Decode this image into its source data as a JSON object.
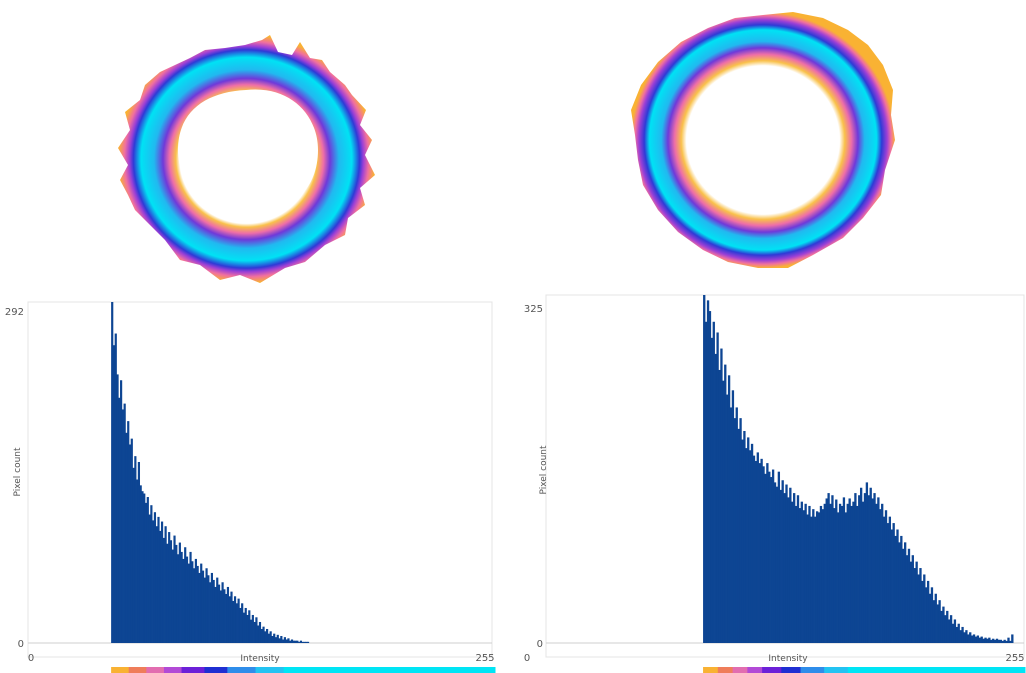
{
  "panels": [
    {
      "image": {
        "name": "left-ring-intensity-map"
      },
      "legend_colors": [
        "#f9b233",
        "#ef7d5a",
        "#e26db0",
        "#b24ad6",
        "#6c20d8",
        "#1f2fd2",
        "#2f8dea",
        "#23c3f2",
        "#00e5f5"
      ]
    },
    {
      "image": {
        "name": "right-ring-intensity-map"
      },
      "legend_colors": [
        "#f9b233",
        "#ef7d5a",
        "#e26db0",
        "#b24ad6",
        "#6c20d8",
        "#1f2fd2",
        "#2f8dea",
        "#23c3f2",
        "#00e5f5"
      ]
    }
  ],
  "chart_data": [
    {
      "type": "bar",
      "xlabel": "Intensity",
      "ylabel": "Pixel count",
      "xlim": [
        0,
        255
      ],
      "ylim": [
        0,
        292
      ],
      "x_ticks": [
        "0",
        "255"
      ],
      "y_ticks": [
        "0",
        "292"
      ],
      "bar_color": "#0d4593",
      "x_start": 45,
      "values": [
        292,
        255,
        265,
        230,
        210,
        225,
        200,
        205,
        180,
        190,
        170,
        175,
        150,
        160,
        140,
        155,
        135,
        130,
        128,
        120,
        125,
        110,
        118,
        105,
        112,
        100,
        108,
        96,
        104,
        90,
        100,
        85,
        95,
        88,
        80,
        92,
        84,
        76,
        86,
        78,
        72,
        82,
        74,
        68,
        78,
        70,
        64,
        72,
        66,
        60,
        68,
        62,
        56,
        64,
        58,
        52,
        60,
        54,
        48,
        56,
        50,
        45,
        52,
        46,
        42,
        48,
        40,
        44,
        36,
        40,
        34,
        38,
        30,
        34,
        26,
        30,
        24,
        28,
        20,
        24,
        18,
        22,
        15,
        18,
        12,
        14,
        10,
        12,
        8,
        10,
        6,
        8,
        5,
        7,
        4,
        6,
        3,
        5,
        3,
        4,
        2,
        3,
        2,
        2,
        2,
        1,
        2,
        1,
        1,
        1,
        1,
        0
      ]
    },
    {
      "type": "bar",
      "xlabel": "Intensity",
      "ylabel": "Pixel count",
      "xlim": [
        0,
        255
      ],
      "ylim": [
        0,
        325
      ],
      "x_ticks": [
        "0",
        "255"
      ],
      "y_ticks": [
        "0",
        "325"
      ],
      "bar_color": "#0d4593",
      "x_start": 92,
      "values": [
        325,
        300,
        320,
        310,
        285,
        300,
        270,
        290,
        255,
        275,
        245,
        260,
        232,
        250,
        220,
        236,
        210,
        220,
        200,
        210,
        190,
        198,
        182,
        192,
        180,
        186,
        175,
        170,
        178,
        168,
        172,
        165,
        158,
        168,
        160,
        155,
        162,
        150,
        146,
        160,
        143,
        152,
        140,
        148,
        136,
        145,
        132,
        140,
        128,
        138,
        126,
        132,
        124,
        130,
        120,
        128,
        118,
        125,
        118,
        123,
        122,
        128,
        125,
        130,
        135,
        140,
        130,
        138,
        126,
        134,
        122,
        130,
        128,
        136,
        122,
        130,
        135,
        128,
        132,
        140,
        128,
        138,
        145,
        132,
        140,
        150,
        138,
        145,
        135,
        140,
        130,
        136,
        125,
        130,
        118,
        124,
        112,
        118,
        106,
        112,
        100,
        106,
        94,
        100,
        88,
        94,
        82,
        88,
        76,
        82,
        70,
        76,
        64,
        70,
        58,
        64,
        52,
        58,
        46,
        52,
        40,
        46,
        36,
        40,
        30,
        34,
        26,
        30,
        22,
        26,
        18,
        22,
        15,
        18,
        12,
        15,
        10,
        12,
        8,
        10,
        7,
        8,
        6,
        7,
        5,
        6,
        4,
        5,
        4,
        5,
        3,
        4,
        3,
        4,
        3,
        3,
        2,
        3,
        2,
        5,
        2,
        8
      ]
    }
  ]
}
